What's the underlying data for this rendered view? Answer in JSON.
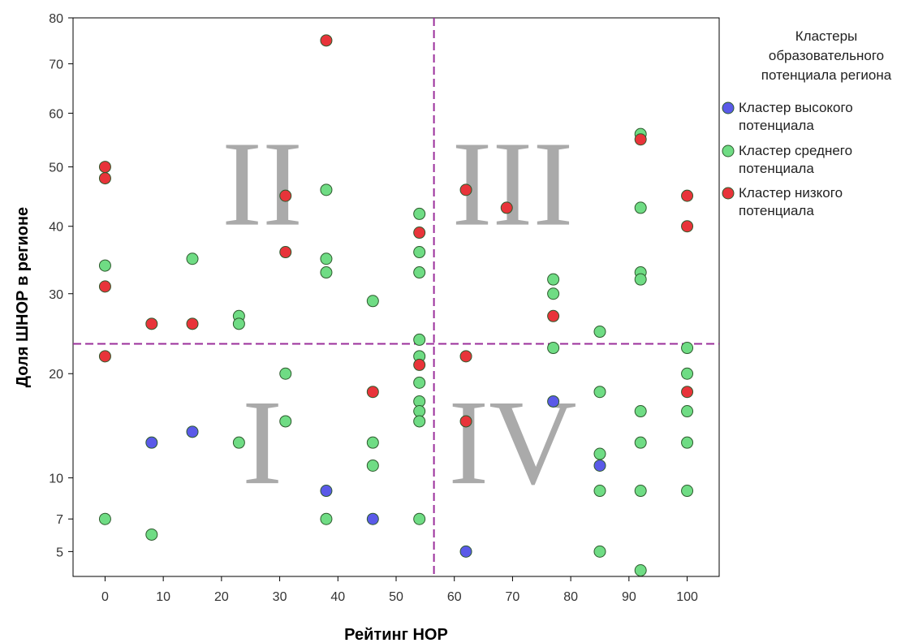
{
  "chart_data": {
    "type": "scatter",
    "xlabel": "Рейтинг НОР",
    "ylabel": "Доля ШНОР в регионе",
    "x_ticks": [
      0,
      10,
      20,
      30,
      40,
      50,
      60,
      70,
      80,
      90,
      100
    ],
    "y_ticks": [
      5,
      7,
      10,
      20,
      30,
      40,
      50,
      60,
      70,
      80
    ],
    "xlim": [
      -5.5,
      105.5
    ],
    "ylim": [
      3.7,
      80
    ],
    "y_scale": "sqrt",
    "grid": false,
    "reference_lines": {
      "x": 56.5,
      "y": 23.5,
      "color": "#9b2f9b",
      "style": "dashed"
    },
    "quadrant_labels": [
      {
        "text": "I",
        "x": 27,
        "y": 13
      },
      {
        "text": "II",
        "x": 27,
        "y": 47
      },
      {
        "text": "III",
        "x": 70,
        "y": 47
      },
      {
        "text": "IV",
        "x": 70,
        "y": 13
      }
    ],
    "legend": {
      "title_lines": [
        "Кластеры",
        "образовательного",
        "потенциала региона"
      ],
      "placement": "right"
    },
    "series": [
      {
        "name_lines": [
          "Кластер высокого",
          "потенциала"
        ],
        "color": "#5a5ae8",
        "points": [
          {
            "x": 8,
            "y": 13
          },
          {
            "x": 15,
            "y": 14
          },
          {
            "x": 38,
            "y": 9
          },
          {
            "x": 46,
            "y": 7
          },
          {
            "x": 62,
            "y": 5
          },
          {
            "x": 77,
            "y": 17
          },
          {
            "x": 85,
            "y": 11
          }
        ]
      },
      {
        "name_lines": [
          "Кластер среднего",
          "потенциала"
        ],
        "color": "#6fdc84",
        "points": [
          {
            "x": 0,
            "y": 34
          },
          {
            "x": 0,
            "y": 7
          },
          {
            "x": 8,
            "y": 6
          },
          {
            "x": 15,
            "y": 35
          },
          {
            "x": 23,
            "y": 27
          },
          {
            "x": 23,
            "y": 26
          },
          {
            "x": 23,
            "y": 13
          },
          {
            "x": 31,
            "y": 20
          },
          {
            "x": 31,
            "y": 15
          },
          {
            "x": 38,
            "y": 46
          },
          {
            "x": 38,
            "y": 35
          },
          {
            "x": 38,
            "y": 33
          },
          {
            "x": 38,
            "y": 7
          },
          {
            "x": 46,
            "y": 29
          },
          {
            "x": 46,
            "y": 13
          },
          {
            "x": 46,
            "y": 11
          },
          {
            "x": 54,
            "y": 42
          },
          {
            "x": 54,
            "y": 36
          },
          {
            "x": 54,
            "y": 33
          },
          {
            "x": 54,
            "y": 24
          },
          {
            "x": 54,
            "y": 22
          },
          {
            "x": 54,
            "y": 19
          },
          {
            "x": 54,
            "y": 17
          },
          {
            "x": 54,
            "y": 16
          },
          {
            "x": 54,
            "y": 15
          },
          {
            "x": 54,
            "y": 7
          },
          {
            "x": 77,
            "y": 32
          },
          {
            "x": 77,
            "y": 30
          },
          {
            "x": 77,
            "y": 23
          },
          {
            "x": 85,
            "y": 25
          },
          {
            "x": 85,
            "y": 18
          },
          {
            "x": 85,
            "y": 12
          },
          {
            "x": 85,
            "y": 9
          },
          {
            "x": 85,
            "y": 5
          },
          {
            "x": 92,
            "y": 56
          },
          {
            "x": 92,
            "y": 43
          },
          {
            "x": 92,
            "y": 33
          },
          {
            "x": 92,
            "y": 32
          },
          {
            "x": 92,
            "y": 16
          },
          {
            "x": 92,
            "y": 13
          },
          {
            "x": 92,
            "y": 9
          },
          {
            "x": 92,
            "y": 4
          },
          {
            "x": 100,
            "y": 23
          },
          {
            "x": 100,
            "y": 20
          },
          {
            "x": 100,
            "y": 16
          },
          {
            "x": 100,
            "y": 13
          },
          {
            "x": 100,
            "y": 9
          }
        ]
      },
      {
        "name_lines": [
          "Кластер низкого",
          "потенциала"
        ],
        "color": "#e8343a",
        "points": [
          {
            "x": 0,
            "y": 50
          },
          {
            "x": 0,
            "y": 48
          },
          {
            "x": 0,
            "y": 31
          },
          {
            "x": 0,
            "y": 22
          },
          {
            "x": 8,
            "y": 26
          },
          {
            "x": 15,
            "y": 26
          },
          {
            "x": 31,
            "y": 45
          },
          {
            "x": 31,
            "y": 36
          },
          {
            "x": 38,
            "y": 75
          },
          {
            "x": 46,
            "y": 18
          },
          {
            "x": 54,
            "y": 39
          },
          {
            "x": 54,
            "y": 21
          },
          {
            "x": 62,
            "y": 46
          },
          {
            "x": 62,
            "y": 22
          },
          {
            "x": 62,
            "y": 15
          },
          {
            "x": 69,
            "y": 43
          },
          {
            "x": 77,
            "y": 27
          },
          {
            "x": 92,
            "y": 55
          },
          {
            "x": 100,
            "y": 45
          },
          {
            "x": 100,
            "y": 40
          },
          {
            "x": 100,
            "y": 18
          }
        ]
      }
    ]
  }
}
